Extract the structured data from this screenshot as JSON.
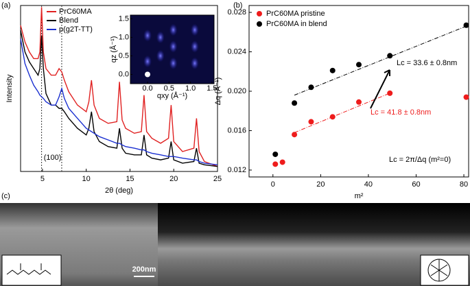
{
  "chart_data": [
    {
      "type": "line",
      "label": "(a)",
      "y_label": "Intensity",
      "x_label": "2θ (deg)",
      "xlim": [
        2.5,
        25
      ],
      "xticks": [
        5,
        10,
        15,
        20,
        25
      ],
      "ylim": [
        0,
        100
      ],
      "log": true,
      "x": [
        2.5,
        3,
        3.5,
        4,
        4.5,
        4.7,
        4.9,
        5.1,
        5.4,
        6,
        6.5,
        6.9,
        7.2,
        7.5,
        8,
        9,
        10,
        10.3,
        10.6,
        10.9,
        11.5,
        12.5,
        13.5,
        13.8,
        14.1,
        14.5,
        15.5,
        16.3,
        16.6,
        16.9,
        17.5,
        18.5,
        19.4,
        19.7,
        20,
        21,
        22.3,
        22.6,
        22.9,
        23.5,
        25
      ],
      "series": [
        {
          "name": "PrC60MA",
          "color": "#e02020",
          "values": [
            88,
            78,
            72,
            68,
            68,
            72,
            99,
            72,
            62,
            58,
            58,
            62,
            60,
            55,
            48,
            40,
            36,
            42,
            55,
            40,
            32,
            29,
            30,
            54,
            31,
            26,
            23,
            24,
            46,
            24,
            20,
            17,
            20,
            40,
            18,
            12,
            14,
            32,
            12,
            6,
            3
          ]
        },
        {
          "name": "Blend",
          "color": "#000000",
          "values": [
            85,
            72,
            66,
            62,
            58,
            62,
            82,
            62,
            47,
            40,
            40,
            38,
            38,
            36,
            32,
            26,
            22,
            26,
            36,
            24,
            18,
            15,
            14,
            26,
            14,
            11,
            10,
            10,
            22,
            10,
            8,
            7,
            8,
            18,
            7,
            5,
            6,
            14,
            5,
            4,
            3
          ]
        },
        {
          "name": "p(g2T-TT)",
          "color": "#1a2fd0",
          "values": [
            80,
            65,
            58,
            52,
            48,
            46,
            45,
            44,
            42,
            40,
            40,
            45,
            50,
            44,
            38,
            32,
            26,
            25,
            24,
            23,
            21,
            19,
            17,
            17,
            16,
            15,
            14,
            13,
            13,
            12,
            11,
            10,
            9,
            9,
            9,
            8,
            7,
            7,
            6,
            5,
            4
          ]
        }
      ],
      "vlines": [
        4.9,
        7.2
      ],
      "annotation": "(100)",
      "inset": {
        "x_label": "qxy (Å⁻¹)",
        "y_label": "qz (Å⁻¹)",
        "xlim": [
          -0.4,
          1.55
        ],
        "ylim": [
          -0.25,
          1.6
        ],
        "xticks": [
          {
            "value": 0,
            "label": "0.0"
          },
          0.5,
          {
            "value": 1,
            "label": "1.0"
          },
          1.5
        ],
        "yticks": [
          {
            "value": 0,
            "label": "0.0"
          },
          0.5,
          {
            "value": 1,
            "label": "1.0"
          },
          1.5
        ]
      }
    },
    {
      "type": "scatter",
      "label": "(b)",
      "x_label": "m²",
      "y_label": "Δq (Å⁻¹)",
      "xlim": [
        -10,
        82
      ],
      "xticks": [
        0,
        20,
        40,
        60,
        80
      ],
      "ylim": [
        0.0113,
        0.0287
      ],
      "yticks": [
        0.012,
        0.016,
        {
          "value": 0.02,
          "label": "0.020"
        },
        0.024,
        0.028
      ],
      "series": [
        {
          "name": "PrC60MA pristine",
          "color": "#ee1c1c",
          "x": [
            1,
            4,
            9,
            16,
            25,
            36,
            49,
            81
          ],
          "values": [
            0.0126,
            0.0128,
            0.0156,
            0.0169,
            0.0174,
            0.0189,
            0.0198,
            0.0194
          ]
        },
        {
          "name": "PrC60MA in blend",
          "color": "#000000",
          "x": [
            1,
            9,
            16,
            25,
            36,
            49,
            81
          ],
          "values": [
            0.0136,
            0.0188,
            0.0204,
            0.0221,
            0.0227,
            0.0236,
            0.0267
          ]
        }
      ],
      "fit_lines": [
        {
          "color": "#ee1c1c",
          "x": [
            9,
            49
          ],
          "values": [
            0.0158,
            0.0198
          ]
        },
        {
          "color": "#000000",
          "x": [
            9,
            81
          ],
          "values": [
            0.0196,
            0.0266
          ]
        }
      ],
      "annotations": [
        "Lc = 33.6 ± 0.8nm",
        "Lc = 41.8 ± 0.8nm",
        "Lc = 2π/Δq (m²=0)"
      ]
    }
  ],
  "figure_c": {
    "label": "(c)",
    "scale_bar": "200nm"
  }
}
